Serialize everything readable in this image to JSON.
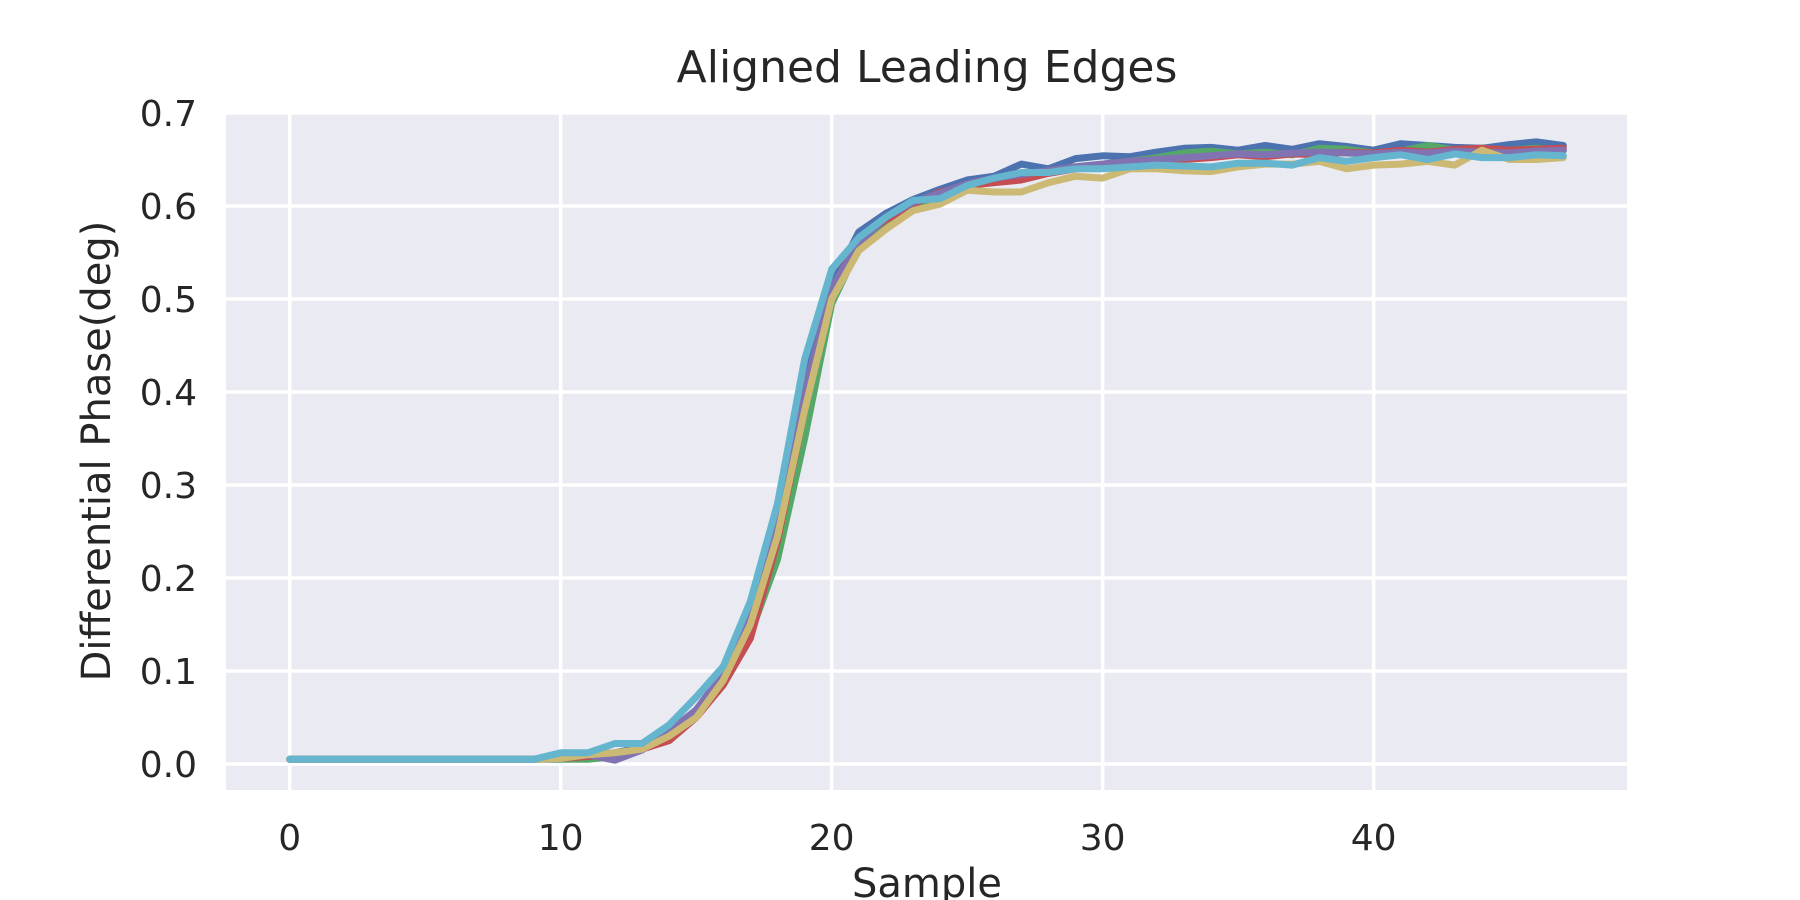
{
  "chart_data": {
    "type": "line",
    "title": "Aligned Leading Edges",
    "xlabel": "Sample",
    "ylabel": "Differential Phase(deg)",
    "xlim": [
      -2.35,
      49.35
    ],
    "ylim": [
      -0.028,
      0.7
    ],
    "xticks": [
      0,
      10,
      20,
      30,
      40
    ],
    "yticks": [
      0.0,
      0.1,
      0.2,
      0.3,
      0.4,
      0.5,
      0.6,
      0.7
    ],
    "ytick_labels": [
      "0.0",
      "0.1",
      "0.2",
      "0.3",
      "0.4",
      "0.5",
      "0.6",
      "0.7"
    ],
    "grid": true,
    "background": "#eaeaf2",
    "x": [
      0,
      1,
      2,
      3,
      4,
      5,
      6,
      7,
      8,
      9,
      10,
      11,
      12,
      13,
      14,
      15,
      16,
      17,
      18,
      19,
      20,
      21,
      22,
      23,
      24,
      25,
      26,
      27,
      28,
      29,
      30,
      31,
      32,
      33,
      34,
      35,
      36,
      37,
      38,
      39,
      40,
      41,
      42,
      43,
      44,
      45,
      46,
      47
    ],
    "series": [
      {
        "color": "#4c72b0",
        "values": [
          0.005,
          0.005,
          0.005,
          0.005,
          0.005,
          0.005,
          0.005,
          0.005,
          0.005,
          0.005,
          0.008,
          0.01,
          0.012,
          0.018,
          0.032,
          0.058,
          0.095,
          0.165,
          0.265,
          0.41,
          0.515,
          0.572,
          0.592,
          0.607,
          0.618,
          0.628,
          0.632,
          0.645,
          0.64,
          0.651,
          0.654,
          0.653,
          0.658,
          0.662,
          0.663,
          0.66,
          0.665,
          0.661,
          0.667,
          0.664,
          0.66,
          0.667,
          0.665,
          0.663,
          0.662,
          0.666,
          0.669,
          0.665
        ]
      },
      {
        "color": "#55a868",
        "values": [
          0.005,
          0.005,
          0.005,
          0.005,
          0.005,
          0.005,
          0.005,
          0.005,
          0.005,
          0.005,
          0.005,
          0.005,
          0.008,
          0.018,
          0.03,
          0.052,
          0.085,
          0.14,
          0.22,
          0.35,
          0.495,
          0.556,
          0.58,
          0.6,
          0.61,
          0.62,
          0.628,
          0.632,
          0.638,
          0.642,
          0.645,
          0.648,
          0.652,
          0.657,
          0.659,
          0.656,
          0.658,
          0.655,
          0.662,
          0.661,
          0.657,
          0.659,
          0.665,
          0.66,
          0.658,
          0.66,
          0.662,
          0.66
        ]
      },
      {
        "color": "#c44e52",
        "values": [
          0.005,
          0.005,
          0.005,
          0.005,
          0.005,
          0.005,
          0.005,
          0.005,
          0.005,
          0.005,
          0.006,
          0.008,
          0.01,
          0.016,
          0.025,
          0.05,
          0.085,
          0.135,
          0.24,
          0.38,
          0.51,
          0.565,
          0.585,
          0.602,
          0.615,
          0.622,
          0.625,
          0.628,
          0.635,
          0.64,
          0.642,
          0.645,
          0.648,
          0.65,
          0.652,
          0.655,
          0.653,
          0.656,
          0.655,
          0.658,
          0.657,
          0.66,
          0.658,
          0.661,
          0.662,
          0.66,
          0.661,
          0.662
        ]
      },
      {
        "color": "#8172b2",
        "values": [
          0.005,
          0.005,
          0.005,
          0.005,
          0.005,
          0.005,
          0.005,
          0.005,
          0.005,
          0.005,
          0.006,
          0.01,
          0.004,
          0.015,
          0.035,
          0.058,
          0.098,
          0.16,
          0.255,
          0.4,
          0.512,
          0.56,
          0.588,
          0.604,
          0.614,
          0.624,
          0.63,
          0.634,
          0.638,
          0.642,
          0.645,
          0.648,
          0.65,
          0.652,
          0.654,
          0.656,
          0.655,
          0.657,
          0.658,
          0.657,
          0.656,
          0.658,
          0.657,
          0.659,
          0.658,
          0.657,
          0.659,
          0.66
        ]
      },
      {
        "color": "#ccb974",
        "values": [
          0.005,
          0.005,
          0.005,
          0.005,
          0.005,
          0.005,
          0.005,
          0.005,
          0.005,
          0.005,
          0.006,
          0.01,
          0.012,
          0.016,
          0.03,
          0.05,
          0.09,
          0.15,
          0.245,
          0.38,
          0.5,
          0.552,
          0.575,
          0.595,
          0.602,
          0.617,
          0.615,
          0.615,
          0.625,
          0.632,
          0.63,
          0.64,
          0.64,
          0.638,
          0.637,
          0.642,
          0.645,
          0.645,
          0.648,
          0.64,
          0.644,
          0.645,
          0.648,
          0.644,
          0.66,
          0.65,
          0.65,
          0.652
        ]
      },
      {
        "color": "#64b5cd",
        "values": [
          0.005,
          0.005,
          0.005,
          0.005,
          0.005,
          0.005,
          0.005,
          0.005,
          0.005,
          0.005,
          0.012,
          0.012,
          0.022,
          0.022,
          0.042,
          0.072,
          0.105,
          0.175,
          0.28,
          0.435,
          0.532,
          0.566,
          0.588,
          0.606,
          0.608,
          0.622,
          0.63,
          0.636,
          0.636,
          0.64,
          0.64,
          0.642,
          0.644,
          0.643,
          0.642,
          0.646,
          0.646,
          0.644,
          0.652,
          0.648,
          0.652,
          0.655,
          0.65,
          0.656,
          0.652,
          0.652,
          0.655,
          0.654
        ]
      }
    ]
  }
}
